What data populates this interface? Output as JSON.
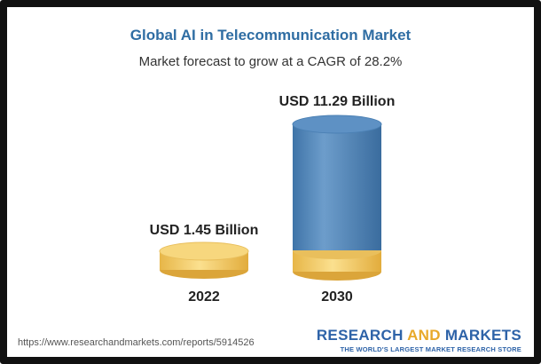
{
  "title": "Global AI in Telecommunication Market",
  "subtitle": "Market forecast to grow at a CAGR of 28.2%",
  "chart_data": {
    "type": "bar",
    "categories": [
      "2022",
      "2030"
    ],
    "values": [
      1.45,
      11.29
    ],
    "value_labels": [
      "USD 1.45 Billion",
      "USD 11.29 Billion"
    ],
    "title": "Global AI in Telecommunication Market",
    "subtitle": "Market forecast to grow at a CAGR of 28.2%",
    "colors": {
      "base_2022": "#f2c766",
      "bar_2030": "#4f86b8",
      "base_2030": "#f2c766"
    }
  },
  "footer": {
    "url": "https://www.researchandmarkets.com/reports/5914526",
    "brand_part1": "RESEARCH",
    "brand_part2": "AND",
    "brand_part3": "MARKETS",
    "brand_tagline": "THE WORLD'S LARGEST MARKET RESEARCH STORE"
  }
}
